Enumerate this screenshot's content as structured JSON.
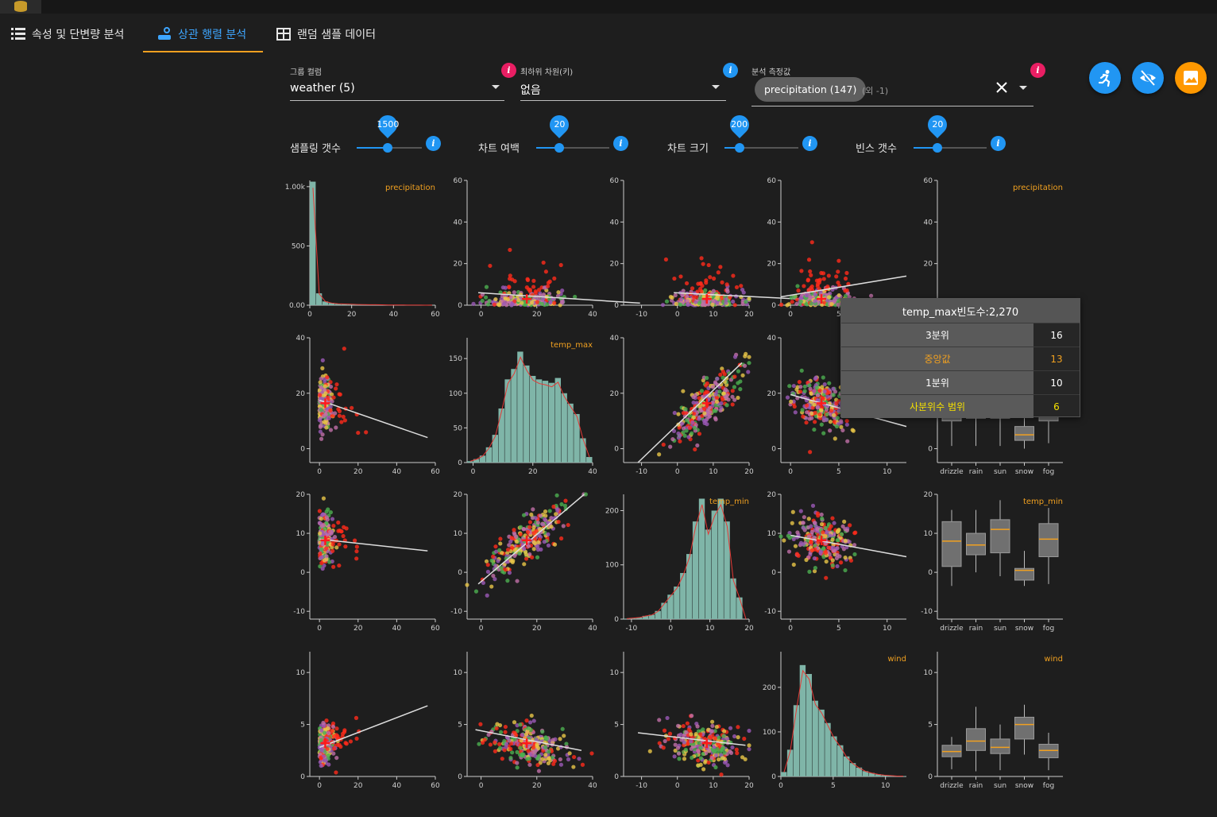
{
  "tabs": [
    {
      "label": "속성 및 단변량 분석",
      "icon": "list-icon"
    },
    {
      "label": "상관 행렬 분석",
      "icon": "correlation-icon"
    },
    {
      "label": "랜덤 샘플 데이터",
      "icon": "table-icon"
    }
  ],
  "fields": {
    "group_column": {
      "label": "그룹 컬럼",
      "value": "weather (5)"
    },
    "sub_dimension": {
      "label": "최하위 차원(키)",
      "value": "없음"
    },
    "measure": {
      "label": "분석 측정값",
      "chip": "precipitation (147)",
      "extra": "(외 -1)"
    }
  },
  "sliders": [
    {
      "label": "샘플링 갯수",
      "value": "1500",
      "fraction": 0.48
    },
    {
      "label": "차트 여백",
      "value": "20",
      "fraction": 0.32
    },
    {
      "label": "차트 크기",
      "value": "200",
      "fraction": 0.2
    },
    {
      "label": "빈스 갯수",
      "value": "20",
      "fraction": 0.33
    }
  ],
  "colors": {
    "accent": "#2196f3",
    "info_pink": "#e91e63",
    "tab_underline": "#f0a020",
    "fab_orange": "#ff9800",
    "hist_fill": "#7fb5a8",
    "box_fill": "#707070",
    "median": "#f0a020",
    "weather": {
      "drizzle": "#9b59b6",
      "rain": "#ff2a1a",
      "sun": "#e8c547",
      "snow": "#c06fa8",
      "fog": "#4caf50"
    }
  },
  "fab_icons": [
    "run-icon",
    "eye-off-icon",
    "image-icon"
  ],
  "tooltip": {
    "title": "temp_max빈도수:2,270",
    "rows": [
      {
        "label": "3분위",
        "value": "16"
      },
      {
        "label": "중앙값",
        "value": "13"
      },
      {
        "label": "1분위",
        "value": "10"
      },
      {
        "label": "사분위수 범위",
        "value": "6"
      }
    ]
  },
  "chart_data": {
    "type": "scatter",
    "variables": [
      "precipitation",
      "temp_max",
      "temp_min",
      "wind",
      "weather"
    ],
    "groups": [
      "drizzle",
      "rain",
      "sun",
      "snow",
      "fog"
    ],
    "diag_titles": [
      "precipitation",
      "temp_max",
      "temp_min",
      "wind",
      "precipitation"
    ],
    "histograms": {
      "precipitation": {
        "range": [
          0,
          60
        ],
        "ticks": [
          "0",
          "20",
          "40",
          "60"
        ],
        "yticks": [
          "0.00",
          "500",
          "1.00k"
        ],
        "ylim": [
          0,
          1000
        ],
        "counts": [
          990,
          95,
          30,
          18,
          12,
          10,
          8,
          6,
          5,
          4,
          4,
          3,
          2,
          2,
          2,
          1,
          1,
          1,
          0,
          1
        ]
      },
      "temp_max": {
        "range": [
          -2,
          40
        ],
        "ticks": [
          "0",
          "20",
          "40"
        ],
        "yticks": [
          "0",
          "50",
          "100",
          "150"
        ],
        "ylim": [
          0,
          180
        ],
        "counts": [
          2,
          5,
          10,
          22,
          40,
          78,
          120,
          135,
          160,
          140,
          125,
          120,
          118,
          115,
          122,
          100,
          85,
          70,
          35,
          8
        ]
      },
      "temp_min": {
        "range": [
          -12,
          20
        ],
        "ticks": [
          "-10",
          "0",
          "10",
          "20"
        ],
        "yticks": [
          "0",
          "100",
          "200"
        ],
        "ylim": [
          0,
          230
        ],
        "counts": [
          1,
          2,
          3,
          6,
          8,
          15,
          30,
          45,
          60,
          85,
          120,
          180,
          222,
          165,
          200,
          222,
          180,
          75,
          40,
          0
        ]
      },
      "wind": {
        "range": [
          0,
          12
        ],
        "ticks": [
          "0",
          "5",
          "10"
        ],
        "yticks": [
          "0",
          "100",
          "200"
        ],
        "ylim": [
          0,
          280
        ],
        "counts": [
          10,
          60,
          160,
          250,
          230,
          170,
          150,
          120,
          90,
          70,
          45,
          30,
          20,
          12,
          8,
          5,
          3,
          2,
          1,
          1
        ]
      }
    },
    "scatter_axes": {
      "precipitation": {
        "range": [
          -5,
          60
        ],
        "ticks": [
          "0",
          "20",
          "40",
          "60"
        ]
      },
      "temp_max": {
        "range": [
          -5,
          40
        ],
        "ticks": [
          "0",
          "20",
          "40"
        ]
      },
      "temp_min": {
        "range": [
          -15,
          20
        ],
        "ticks": [
          "-10",
          "0",
          "10",
          "20"
        ]
      },
      "wind": {
        "range": [
          -1,
          12
        ],
        "ticks": [
          "0",
          "5",
          "10"
        ]
      }
    },
    "scatter_y_axes": {
      "precipitation": {
        "range": [
          0,
          60
        ],
        "ticks": [
          "0",
          "20",
          "40",
          "60"
        ]
      },
      "temp_max": {
        "range": [
          -5,
          40
        ],
        "ticks": [
          "0",
          "20",
          "40"
        ]
      },
      "temp_min": {
        "range": [
          -12,
          20
        ],
        "ticks": [
          "-10",
          "0",
          "10",
          "20"
        ]
      },
      "wind": {
        "range": [
          0,
          12
        ],
        "ticks": [
          "0",
          "5",
          "10"
        ]
      }
    },
    "means": {
      "precipitation": 3.0,
      "temp_max": 16.4,
      "temp_min": 8.2,
      "wind": 3.2
    },
    "boxplots": {
      "temp_max": [
        {
          "group": "drizzle",
          "q1": 10,
          "median": 15,
          "q3": 18,
          "whisker_low": 1,
          "whisker_high": 27
        },
        {
          "group": "rain",
          "q1": 11,
          "median": 13,
          "q3": 17,
          "whisker_low": 1,
          "whisker_high": 24
        },
        {
          "group": "sun",
          "q1": 11,
          "median": 19,
          "q3": 24,
          "whisker_low": 1,
          "whisker_high": 35
        },
        {
          "group": "snow",
          "q1": 3,
          "median": 5,
          "q3": 8,
          "whisker_low": 0,
          "whisker_high": 11
        },
        {
          "group": "fog",
          "q1": 10,
          "median": 16,
          "q3": 22,
          "whisker_low": 2,
          "whisker_high": 30
        }
      ],
      "temp_min": [
        {
          "group": "drizzle",
          "q1": 1.5,
          "median": 8,
          "q3": 13,
          "whisker_low": -3.5,
          "whisker_high": 16
        },
        {
          "group": "rain",
          "q1": 4.5,
          "median": 7,
          "q3": 10,
          "whisker_low": 0,
          "whisker_high": 16
        },
        {
          "group": "sun",
          "q1": 5,
          "median": 11,
          "q3": 13.5,
          "whisker_low": -1,
          "whisker_high": 18.5
        },
        {
          "group": "snow",
          "q1": -2,
          "median": 0.5,
          "q3": 1,
          "whisker_low": -3.5,
          "whisker_high": 5.5
        },
        {
          "group": "fog",
          "q1": 4,
          "median": 8.5,
          "q3": 12.5,
          "whisker_low": -3,
          "whisker_high": 16.5
        }
      ],
      "wind": [
        {
          "group": "drizzle",
          "q1": 1.9,
          "median": 2.4,
          "q3": 3.0,
          "whisker_low": 0.7,
          "whisker_high": 3.8
        },
        {
          "group": "rain",
          "q1": 2.5,
          "median": 3.4,
          "q3": 4.6,
          "whisker_low": 0.5,
          "whisker_high": 6.7
        },
        {
          "group": "sun",
          "q1": 2.2,
          "median": 2.8,
          "q3": 3.6,
          "whisker_low": 0.6,
          "whisker_high": 5.0
        },
        {
          "group": "snow",
          "q1": 3.6,
          "median": 5.0,
          "q3": 5.7,
          "whisker_low": 2.1,
          "whisker_high": 6.9
        },
        {
          "group": "fog",
          "q1": 1.8,
          "median": 2.5,
          "q3": 3.1,
          "whisker_low": 0.6,
          "whisker_high": 4.2
        }
      ]
    },
    "box_categories": [
      "drizzle",
      "rain",
      "sun",
      "snow",
      "fog"
    ],
    "box_yticks": {
      "temp_max": [
        "0",
        "20",
        "40"
      ],
      "temp_min": [
        "-10",
        "0",
        "10",
        "20"
      ],
      "wind": [
        "0",
        "5",
        "10"
      ],
      "precipitation": [
        "0",
        "20",
        "40",
        "60"
      ]
    },
    "box_yranges": {
      "temp_max": [
        -5,
        40
      ],
      "temp_min": [
        -12,
        20
      ],
      "wind": [
        0,
        12
      ],
      "precipitation": [
        0,
        60
      ]
    },
    "regression": {
      "precipitation|temp_max": [
        [
          -1,
          6
        ],
        [
          57,
          1
        ]
      ],
      "precipitation|temp_min": [
        [
          -1,
          6
        ],
        [
          57,
          1
        ]
      ],
      "precipitation|wind": [
        [
          -1,
          4
        ],
        [
          12,
          14
        ]
      ],
      "temp_max|precipitation": [
        [
          0,
          17.5
        ],
        [
          56,
          4
        ]
      ],
      "temp_max|temp_min": [
        [
          -11,
          -5
        ],
        [
          18,
          31
        ]
      ],
      "temp_max|wind": [
        [
          0,
          19.5
        ],
        [
          12,
          8
        ]
      ],
      "temp_min|precipitation": [
        [
          0,
          8.5
        ],
        [
          56,
          5.5
        ]
      ],
      "temp_min|temp_max": [
        [
          -1,
          -3
        ],
        [
          37,
          20
        ]
      ],
      "temp_min|wind": [
        [
          0,
          9.5
        ],
        [
          12,
          4
        ]
      ],
      "wind|precipitation": [
        [
          0,
          2.8
        ],
        [
          56,
          6.8
        ]
      ],
      "wind|temp_max": [
        [
          -2,
          4.5
        ],
        [
          36,
          2.5
        ]
      ],
      "wind|temp_min": [
        [
          -11,
          4.2
        ],
        [
          19,
          3.0
        ]
      ]
    }
  }
}
